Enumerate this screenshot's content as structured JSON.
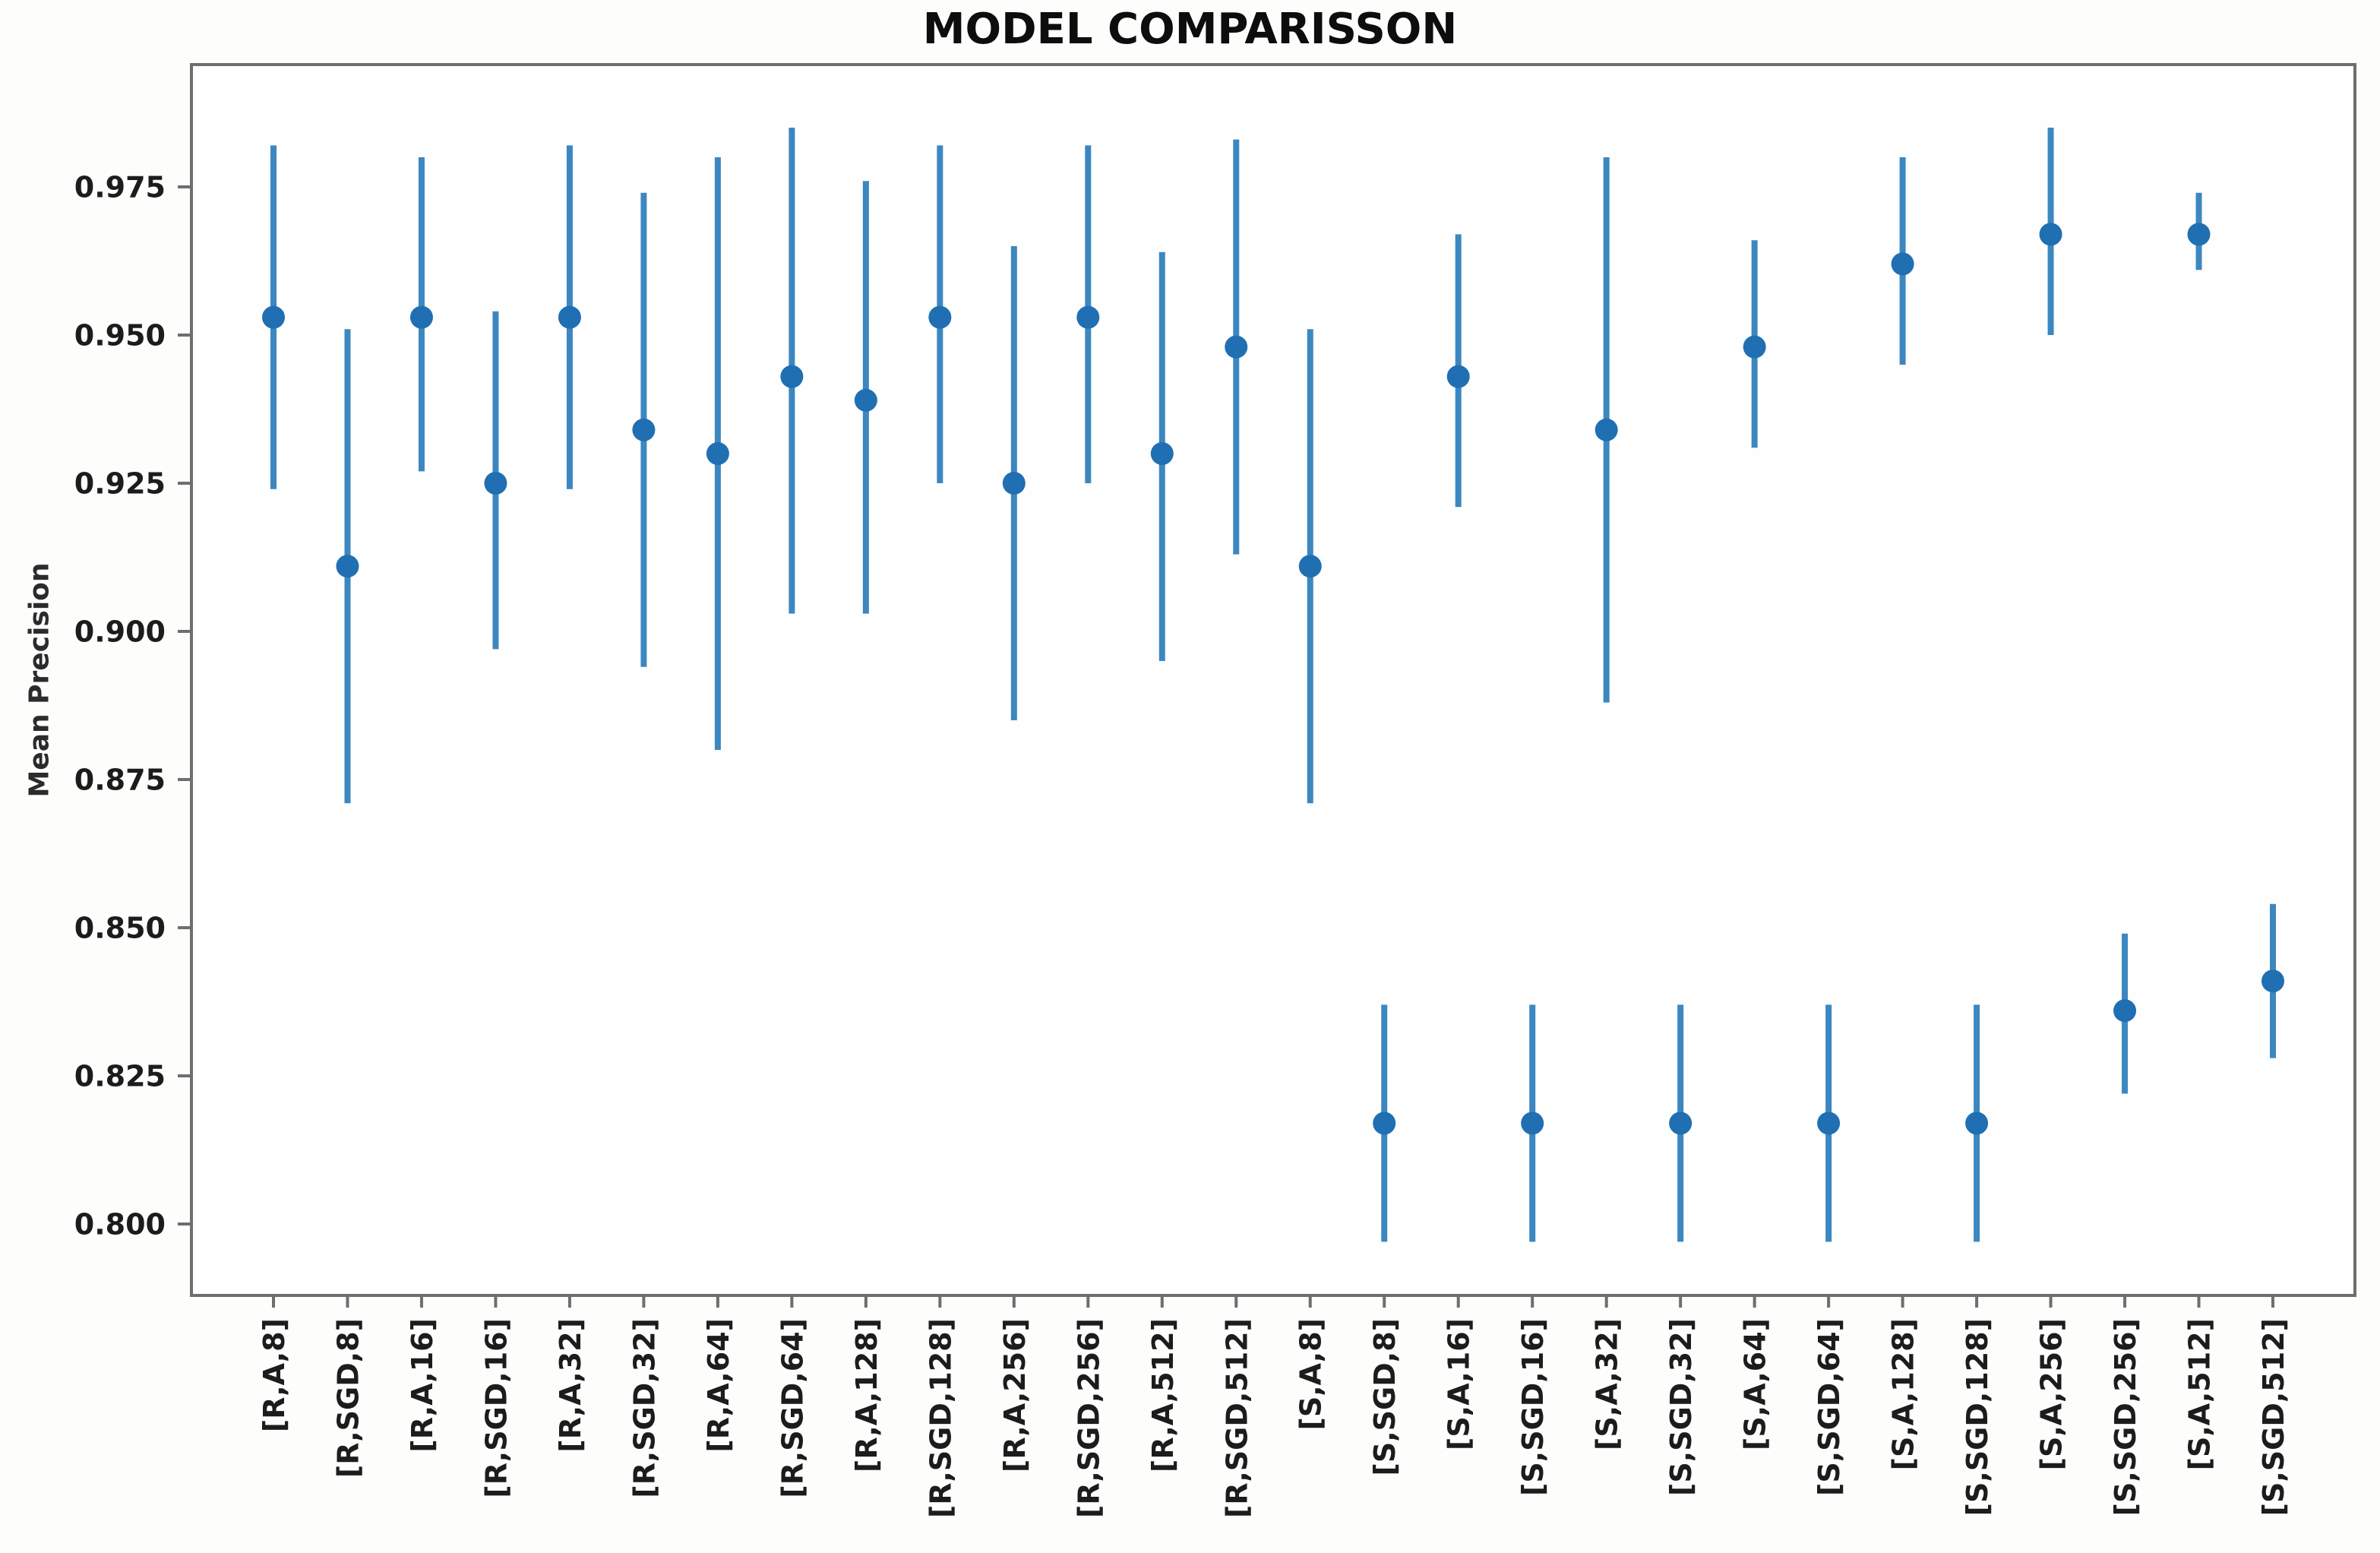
{
  "chart_data": {
    "type": "scatter",
    "subtype": "errorbar",
    "title": "MODEL COMPARISSON",
    "xlabel": "",
    "ylabel": "Mean Precision",
    "ylim": [
      0.788,
      0.996
    ],
    "yticks": [
      0.975,
      0.95,
      0.925,
      0.9,
      0.875,
      0.85,
      0.825,
      0.8
    ],
    "ytick_format_decimals": 3,
    "grid": false,
    "legend_position": "none",
    "colors": {
      "errorbar_line": "#3c87c0",
      "marker": "#1f6fb2",
      "axis_spine": "#6e6e6e",
      "tick_text": "#1c1c1c",
      "plot_background": "#fefefe"
    },
    "categories": [
      "[R,A,8]",
      "[R,SGD,8]",
      "[R,A,16]",
      "[R,SGD,16]",
      "[R,A,32]",
      "[R,SGD,32]",
      "[R,A,64]",
      "[R,SGD,64]",
      "[R,A,128]",
      "[R,SGD,128]",
      "[R,A,256]",
      "[R,SGD,256]",
      "[R,A,512]",
      "[R,SGD,512]",
      "[S,A,8]",
      "[S,SGD,8]",
      "[S,A,16]",
      "[S,SGD,16]",
      "[S,A,32]",
      "[S,SGD,32]",
      "[S,A,64]",
      "[S,SGD,64]",
      "[S,A,128]",
      "[S,SGD,128]",
      "[S,A,256]",
      "[S,SGD,256]",
      "[S,A,512]",
      "[S,SGD,512]"
    ],
    "series": [
      {
        "name": "Mean Precision",
        "means": [
          0.953,
          0.911,
          0.953,
          0.925,
          0.953,
          0.934,
          0.93,
          0.943,
          0.939,
          0.953,
          0.925,
          0.953,
          0.93,
          0.948,
          0.911,
          0.817,
          0.943,
          0.817,
          0.934,
          0.817,
          0.948,
          0.817,
          0.962,
          0.817,
          0.967,
          0.836,
          0.967,
          0.841
        ],
        "err_low": [
          0.924,
          0.871,
          0.927,
          0.897,
          0.924,
          0.894,
          0.88,
          0.903,
          0.903,
          0.925,
          0.885,
          0.925,
          0.895,
          0.913,
          0.871,
          0.797,
          0.921,
          0.797,
          0.888,
          0.797,
          0.931,
          0.797,
          0.945,
          0.797,
          0.95,
          0.822,
          0.961,
          0.828
        ],
        "err_high": [
          0.982,
          0.951,
          0.98,
          0.954,
          0.982,
          0.974,
          0.98,
          0.985,
          0.976,
          0.982,
          0.965,
          0.982,
          0.964,
          0.983,
          0.951,
          0.837,
          0.967,
          0.837,
          0.98,
          0.837,
          0.966,
          0.837,
          0.98,
          0.837,
          0.985,
          0.849,
          0.974,
          0.854
        ]
      }
    ]
  }
}
